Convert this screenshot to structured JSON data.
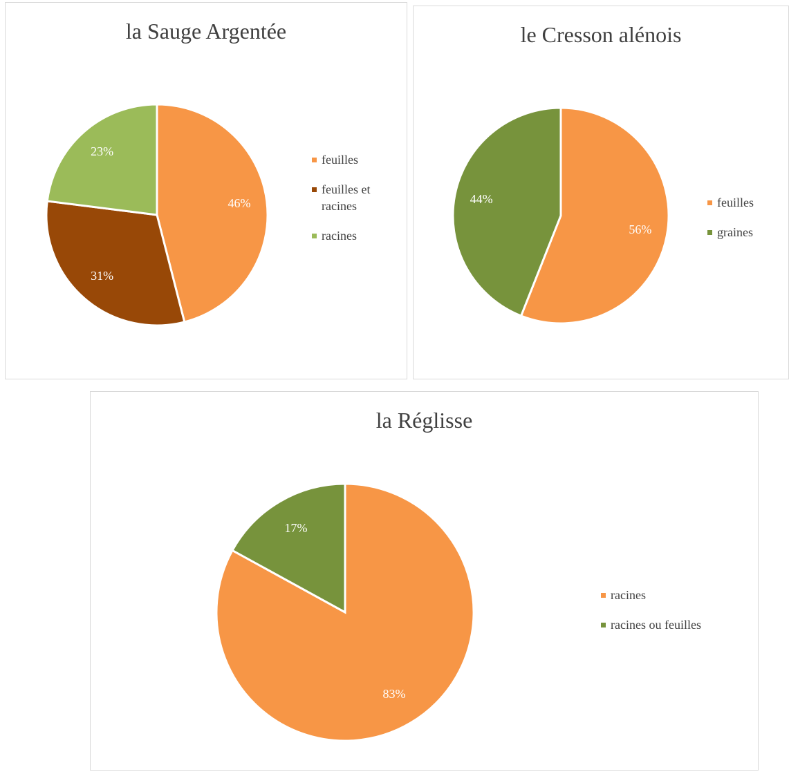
{
  "chart_data": [
    {
      "type": "pie",
      "title": "la Sauge Argentée",
      "categories": [
        "feuilles",
        "feuilles et racines",
        "racines"
      ],
      "values": [
        46,
        31,
        23
      ],
      "value_labels": [
        "46%",
        "31%",
        "23%"
      ],
      "colors": [
        "#f79646",
        "#984807",
        "#9bbb59"
      ],
      "legend": "right"
    },
    {
      "type": "pie",
      "title": "le Cresson alénois",
      "categories": [
        "feuilles",
        "graines"
      ],
      "values": [
        56,
        44
      ],
      "value_labels": [
        "56%",
        "44%"
      ],
      "colors": [
        "#f79646",
        "#77933c"
      ],
      "legend": "right"
    },
    {
      "type": "pie",
      "title": "la Réglisse",
      "categories": [
        "racines",
        "racines ou feuilles"
      ],
      "values": [
        83,
        17
      ],
      "value_labels": [
        "83%",
        "17%"
      ],
      "colors": [
        "#f79646",
        "#77933c"
      ],
      "legend": "right"
    }
  ]
}
